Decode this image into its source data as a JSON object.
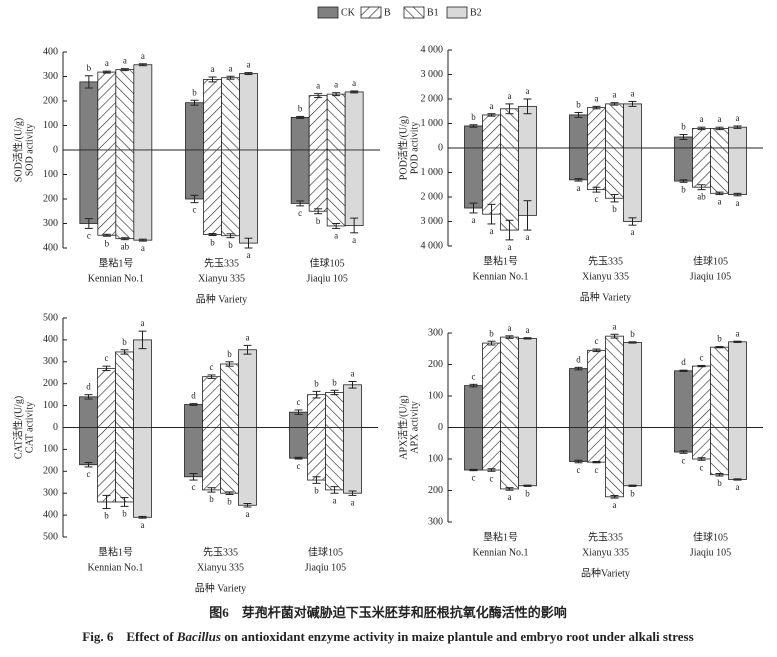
{
  "legend": [
    {
      "name": "CK",
      "color": "#808080",
      "hatch": "none"
    },
    {
      "name": "B",
      "color": "#ffffff",
      "hatch": "/"
    },
    {
      "name": "B1",
      "color": "#ffffff",
      "hatch": "\\"
    },
    {
      "name": "B2",
      "color": "#d9d9d9",
      "hatch": "none"
    }
  ],
  "chart_data": [
    {
      "type": "bar",
      "ylabel": [
        "SOD活性/(U/g)",
        "SOD activity"
      ],
      "xlabel": "品种 Variety",
      "categories": [
        [
          "垦粘1号",
          "Kennian No.1"
        ],
        [
          "先玉335",
          "Xianyu 335"
        ],
        [
          "佳球105",
          "Jiaqiu 105"
        ]
      ],
      "ylim": [
        -400,
        400
      ],
      "yticks": [
        400,
        300,
        200,
        100,
        0,
        {
          "value": -100,
          "label": "100"
        },
        {
          "value": -200,
          "label": "200"
        },
        {
          "value": -300,
          "label": "300"
        },
        {
          "value": -400,
          "label": "400"
        }
      ],
      "series": [
        {
          "values": [
            278,
            193,
            133
          ],
          "errors": [
            25,
            10,
            4
          ],
          "letters": [
            "b",
            "b",
            "b"
          ],
          "root_values": [
            -300,
            -200,
            -218
          ],
          "root_errors": [
            20,
            15,
            10
          ],
          "root_letters": [
            "c",
            "c",
            "c"
          ]
        },
        {
          "values": [
            318,
            288,
            222
          ],
          "errors": [
            4,
            10,
            8
          ],
          "letters": [
            "a",
            "a",
            "a"
          ],
          "root_values": [
            -348,
            -345,
            -250
          ],
          "root_errors": [
            4,
            4,
            10
          ],
          "root_letters": [
            "b",
            "b",
            "b"
          ]
        },
        {
          "values": [
            328,
            295,
            228
          ],
          "errors": [
            4,
            6,
            6
          ],
          "letters": [
            "a",
            "a",
            "a"
          ],
          "root_values": [
            -362,
            -350,
            -310
          ],
          "root_errors": [
            4,
            8,
            10
          ],
          "root_letters": [
            "ab",
            "b",
            "a"
          ]
        },
        {
          "values": [
            348,
            312,
            237
          ],
          "errors": [
            4,
            4,
            4
          ],
          "letters": [
            "a",
            "a",
            "a"
          ],
          "root_values": [
            -368,
            -380,
            -308
          ],
          "root_errors": [
            4,
            20,
            30
          ],
          "root_letters": [
            "a",
            "a",
            "a"
          ]
        }
      ]
    },
    {
      "type": "bar",
      "ylabel": [
        "POD活性/(U/g)",
        "POD activity"
      ],
      "xlabel": "品种 Variety",
      "categories": [
        [
          "垦粘1号",
          "Kennian No.1"
        ],
        [
          "先玉335",
          "Xianyu 335"
        ],
        [
          "佳球105",
          "Jiaqiu 105"
        ]
      ],
      "ylim": [
        -4000,
        4000
      ],
      "yticks": [
        {
          "value": 4000,
          "label": "4 000"
        },
        {
          "value": 3000,
          "label": "3 000"
        },
        {
          "value": 2000,
          "label": "2 000"
        },
        {
          "value": 1000,
          "label": "1 000"
        },
        0,
        {
          "value": -1000,
          "label": "1 000"
        },
        {
          "value": -2000,
          "label": "2 000"
        },
        {
          "value": -3000,
          "label": "3 000"
        },
        {
          "value": -4000,
          "label": "4 000"
        }
      ],
      "series": [
        {
          "values": [
            900,
            1350,
            450
          ],
          "errors": [
            50,
            100,
            100
          ],
          "letters": [
            "b",
            "b",
            "b"
          ],
          "root_values": [
            -2450,
            -1300,
            -1350
          ],
          "root_errors": [
            200,
            50,
            50
          ],
          "root_letters": [
            "a",
            "a",
            "b"
          ]
        },
        {
          "values": [
            1350,
            1650,
            800
          ],
          "errors": [
            50,
            50,
            50
          ],
          "letters": [
            "a",
            "a",
            "a"
          ],
          "root_values": [
            -2700,
            -1700,
            -1600
          ],
          "root_errors": [
            400,
            100,
            100
          ],
          "root_letters": [
            "a",
            "c",
            "ab"
          ]
        },
        {
          "values": [
            1600,
            1800,
            800
          ],
          "errors": [
            200,
            50,
            50
          ],
          "letters": [
            "a",
            "a",
            "a"
          ],
          "root_values": [
            -3350,
            -2050,
            -1850
          ],
          "root_errors": [
            400,
            150,
            50
          ],
          "root_letters": [
            "a",
            "b",
            "a"
          ]
        },
        {
          "values": [
            1700,
            1800,
            850
          ],
          "errors": [
            300,
            100,
            50
          ],
          "letters": [
            "a",
            "a",
            "a"
          ],
          "root_values": [
            -2750,
            -3000,
            -1900
          ],
          "root_errors": [
            600,
            150,
            50
          ],
          "root_letters": [
            "a",
            "a",
            "a"
          ]
        }
      ]
    },
    {
      "type": "bar",
      "ylabel": [
        "CAT活性/(U/g)",
        "CAT activity"
      ],
      "xlabel": "品种 Variety",
      "categories": [
        [
          "垦粘1号",
          "Kennian No.1"
        ],
        [
          "先玉335",
          "Xianyu 335"
        ],
        [
          "佳球105",
          "Jiaqiu 105"
        ]
      ],
      "ylim": [
        -500,
        500
      ],
      "yticks": [
        500,
        400,
        300,
        200,
        100,
        0,
        {
          "value": -100,
          "label": "100"
        },
        {
          "value": -200,
          "label": "200"
        },
        {
          "value": -300,
          "label": "300"
        },
        {
          "value": -400,
          "label": "400"
        },
        {
          "value": -500,
          "label": "500"
        }
      ],
      "series": [
        {
          "values": [
            140,
            105,
            70
          ],
          "errors": [
            10,
            4,
            10
          ],
          "letters": [
            "d",
            "d",
            "c"
          ],
          "root_values": [
            -170,
            -225,
            -140
          ],
          "root_errors": [
            10,
            15,
            4
          ],
          "root_letters": [
            "c",
            "c",
            "c"
          ]
        },
        {
          "values": [
            270,
            232,
            150
          ],
          "errors": [
            10,
            8,
            15
          ],
          "letters": [
            "c",
            "c",
            "b"
          ],
          "root_values": [
            -340,
            -285,
            -240
          ],
          "root_errors": [
            30,
            10,
            15
          ],
          "root_letters": [
            "b",
            "b",
            "b"
          ]
        },
        {
          "values": [
            345,
            290,
            160
          ],
          "errors": [
            10,
            10,
            10
          ],
          "letters": [
            "b",
            "b",
            "b"
          ],
          "root_values": [
            -340,
            -300,
            -285
          ],
          "root_errors": [
            20,
            6,
            15
          ],
          "root_letters": [
            "b",
            "b",
            "a"
          ]
        },
        {
          "values": [
            400,
            355,
            195
          ],
          "errors": [
            40,
            20,
            15
          ],
          "letters": [
            "a",
            "a",
            "a"
          ],
          "root_values": [
            -410,
            -355,
            -300
          ],
          "root_errors": [
            4,
            8,
            10
          ],
          "root_letters": [
            "a",
            "a",
            "a"
          ]
        }
      ]
    },
    {
      "type": "bar",
      "ylabel": [
        "APX活性/(U/g)",
        "APX activity"
      ],
      "xlabel": "品种Variety",
      "categories": [
        [
          "垦粘1号",
          "Kennian No.1"
        ],
        [
          "先玉335",
          "Xianyu 335"
        ],
        [
          "佳球105",
          "Jiaqiu 105"
        ]
      ],
      "ylim": [
        -300,
        300
      ],
      "yticks": [
        300,
        200,
        100,
        0,
        {
          "value": -100,
          "label": "100"
        },
        {
          "value": -200,
          "label": "200"
        },
        {
          "value": -300,
          "label": "300"
        }
      ],
      "series": [
        {
          "values": [
            133,
            187,
            180
          ],
          "errors": [
            4,
            4,
            2
          ],
          "letters": [
            "c",
            "d",
            "d"
          ],
          "root_values": [
            -135,
            -108,
            -78
          ],
          "root_errors": [
            2,
            4,
            4
          ],
          "root_letters": [
            "c",
            "c",
            "c"
          ]
        },
        {
          "values": [
            268,
            245,
            195
          ],
          "errors": [
            6,
            4,
            2
          ],
          "letters": [
            "b",
            "c",
            "c"
          ],
          "root_values": [
            -135,
            -110,
            -100
          ],
          "root_errors": [
            4,
            2,
            4
          ],
          "root_letters": [
            "c",
            "c",
            "c"
          ]
        },
        {
          "values": [
            287,
            290,
            255
          ],
          "errors": [
            4,
            6,
            2
          ],
          "letters": [
            "a",
            "a",
            "b"
          ],
          "root_values": [
            -195,
            -220,
            -150
          ],
          "root_errors": [
            4,
            4,
            4
          ],
          "root_letters": [
            "a",
            "a",
            "b"
          ]
        },
        {
          "values": [
            283,
            270,
            272
          ],
          "errors": [
            2,
            2,
            2
          ],
          "letters": [
            "a",
            "b",
            "a"
          ],
          "root_values": [
            -185,
            -185,
            -165
          ],
          "root_errors": [
            2,
            2,
            2
          ],
          "root_letters": [
            "b",
            "b",
            "a"
          ]
        }
      ]
    }
  ],
  "caption": {
    "zh": "图6　芽孢杆菌对碱胁迫下玉米胚芽和胚根抗氧化酶活性的影响",
    "en": [
      "Fig. 6　Effect of ",
      "Bacillus",
      " on antioxidant enzyme activity in maize plantule and embryo root under alkali stress"
    ]
  }
}
